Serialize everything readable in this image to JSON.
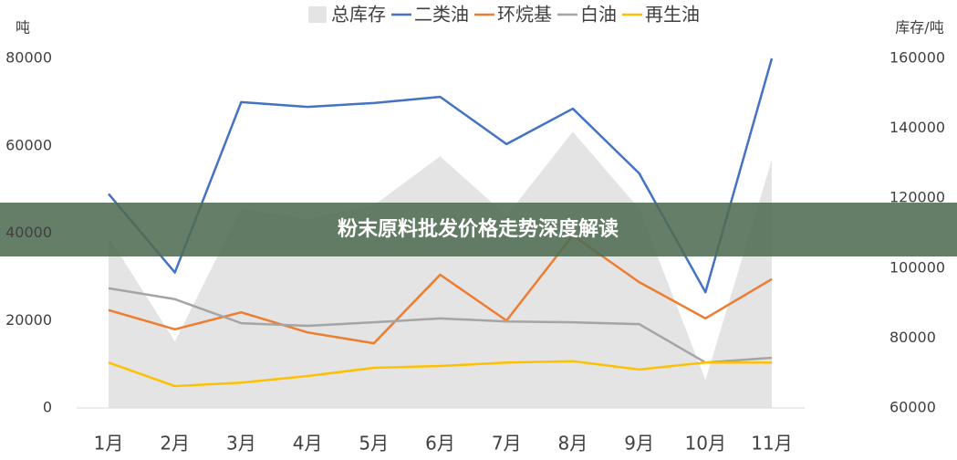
{
  "chart_data": {
    "type": "line",
    "categories": [
      "1月",
      "2月",
      "3月",
      "4月",
      "5月",
      "6月",
      "7月",
      "8月",
      "9月",
      "10月",
      "11月"
    ],
    "y_label": "吨",
    "y2_label": "库存/吨",
    "ylim": [
      0,
      80000
    ],
    "yticks": [
      0,
      20000,
      40000,
      60000,
      80000
    ],
    "y2lim": [
      60000,
      160000
    ],
    "y2ticks": [
      60000,
      80000,
      100000,
      120000,
      140000,
      160000
    ],
    "grid": false,
    "legend": "top",
    "series": [
      {
        "name": "总库存",
        "type": "area",
        "axis": "y2",
        "color": "#e4e4e4",
        "values": [
          109000,
          79000,
          117000,
          114000,
          118000,
          132000,
          115000,
          139000,
          117000,
          68000,
          131000
        ]
      },
      {
        "name": "二类油",
        "color": "#4472c4",
        "values": [
          49000,
          31000,
          70000,
          68900,
          69800,
          71200,
          60400,
          68500,
          53700,
          26500,
          80000
        ]
      },
      {
        "name": "环烷基",
        "color": "#ed7d31",
        "values": [
          22400,
          18000,
          21900,
          17300,
          14800,
          30500,
          20000,
          39500,
          28800,
          20500,
          29500
        ]
      },
      {
        "name": "白油",
        "color": "#a5a5a5",
        "values": [
          27400,
          24900,
          19400,
          18800,
          19600,
          20500,
          19800,
          19600,
          19200,
          10400,
          11500
        ]
      },
      {
        "name": "再生油",
        "color": "#ffc000",
        "values": [
          10400,
          5000,
          5800,
          7300,
          9200,
          9600,
          10400,
          10700,
          8800,
          10400,
          10400
        ]
      }
    ],
    "annotation": "粉末原料批发价格走势深度解读"
  }
}
